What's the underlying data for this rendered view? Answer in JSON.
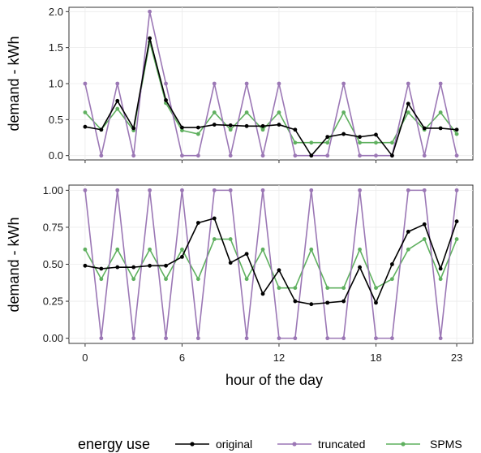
{
  "chart_data": [
    {
      "type": "line",
      "x": [
        0,
        1,
        2,
        3,
        4,
        5,
        6,
        7,
        8,
        9,
        10,
        11,
        12,
        13,
        14,
        15,
        16,
        17,
        18,
        19,
        20,
        21,
        22,
        23
      ],
      "xlim": [
        -1,
        24
      ],
      "xticks": [
        0,
        6,
        12,
        18,
        23
      ],
      "xlabel": "",
      "ylabel": "demand - kWh",
      "ylim": [
        -0.06,
        2.06
      ],
      "yticks": [
        0.0,
        0.5,
        1.0,
        1.5,
        2.0
      ],
      "ytick_labels": [
        "0.0",
        "0.5",
        "1.0",
        "1.5",
        "2.0"
      ],
      "grid": true,
      "series": [
        {
          "name": "original",
          "color": "#000000",
          "values": [
            0.4,
            0.36,
            0.76,
            0.38,
            1.63,
            0.77,
            0.39,
            0.39,
            0.43,
            0.42,
            0.41,
            0.41,
            0.43,
            0.36,
            0.0,
            0.26,
            0.3,
            0.26,
            0.29,
            0.0,
            0.72,
            0.38,
            0.38,
            0.36
          ]
        },
        {
          "name": "truncated",
          "color": "#9b77b5",
          "values": [
            1,
            0,
            1,
            0,
            2,
            1,
            0,
            0,
            1,
            0,
            1,
            0,
            1,
            0,
            0,
            0,
            1,
            0,
            0,
            0,
            1,
            0,
            1,
            0
          ]
        },
        {
          "name": "SPMS",
          "color": "#5fb05f",
          "values": [
            0.6,
            0.36,
            0.65,
            0.35,
            1.58,
            0.73,
            0.35,
            0.3,
            0.6,
            0.36,
            0.6,
            0.36,
            0.6,
            0.18,
            0.18,
            0.18,
            0.6,
            0.18,
            0.18,
            0.18,
            0.6,
            0.36,
            0.6,
            0.3
          ]
        }
      ]
    },
    {
      "type": "line",
      "x": [
        0,
        1,
        2,
        3,
        4,
        5,
        6,
        7,
        8,
        9,
        10,
        11,
        12,
        13,
        14,
        15,
        16,
        17,
        18,
        19,
        20,
        21,
        22,
        23
      ],
      "xlim": [
        -1,
        24
      ],
      "xticks": [
        0,
        6,
        12,
        18,
        23
      ],
      "xtick_labels": [
        "0",
        "6",
        "12",
        "18",
        "23"
      ],
      "xlabel": "hour of the day",
      "ylabel": "demand - kWh",
      "ylim": [
        -0.035,
        1.035
      ],
      "yticks": [
        0.0,
        0.25,
        0.5,
        0.75,
        1.0
      ],
      "ytick_labels": [
        "0.00",
        "0.25",
        "0.50",
        "0.75",
        "1.00"
      ],
      "grid": true,
      "series": [
        {
          "name": "original",
          "color": "#000000",
          "values": [
            0.49,
            0.47,
            0.48,
            0.48,
            0.49,
            0.49,
            0.55,
            0.78,
            0.81,
            0.51,
            0.57,
            0.3,
            0.46,
            0.25,
            0.23,
            0.24,
            0.25,
            0.48,
            0.24,
            0.5,
            0.72,
            0.77,
            0.47,
            0.79
          ]
        },
        {
          "name": "truncated",
          "color": "#9b77b5",
          "values": [
            1,
            0,
            1,
            0,
            1,
            0,
            1,
            0,
            1,
            1,
            0,
            1,
            0,
            0,
            1,
            0,
            0,
            1,
            0,
            0,
            1,
            1,
            0,
            1
          ]
        },
        {
          "name": "SPMS",
          "color": "#5fb05f",
          "values": [
            0.6,
            0.4,
            0.6,
            0.4,
            0.6,
            0.4,
            0.6,
            0.4,
            0.67,
            0.67,
            0.4,
            0.6,
            0.34,
            0.34,
            0.6,
            0.34,
            0.34,
            0.6,
            0.34,
            0.4,
            0.6,
            0.67,
            0.4,
            0.67
          ]
        }
      ]
    }
  ],
  "legend": {
    "title": "energy use",
    "position": "bottom",
    "entries": [
      "original",
      "truncated",
      "SPMS"
    ]
  }
}
